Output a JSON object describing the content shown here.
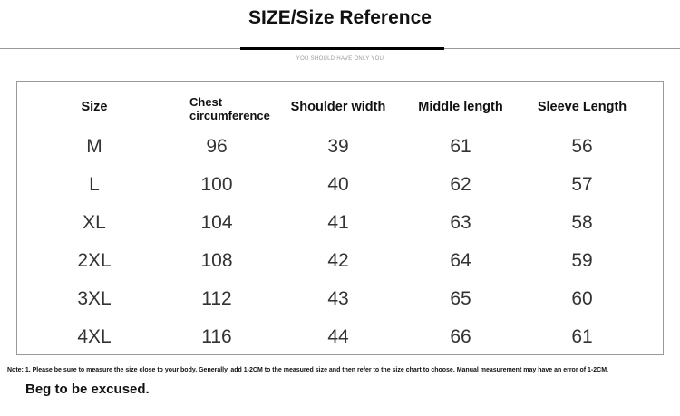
{
  "title": "SIZE/Size Reference",
  "subtitle": "YOU SHOULD HAVE ONLY YOU",
  "table": {
    "headers": [
      "Size",
      "Chest circumference",
      "Shoulder width",
      "Middle length",
      "Sleeve Length"
    ],
    "rows": [
      [
        "M",
        "96",
        "39",
        "61",
        "56"
      ],
      [
        "L",
        "100",
        "40",
        "62",
        "57"
      ],
      [
        "XL",
        "104",
        "41",
        "63",
        "58"
      ],
      [
        "2XL",
        "108",
        "42",
        "64",
        "59"
      ],
      [
        "3XL",
        "112",
        "43",
        "65",
        "60"
      ],
      [
        "4XL",
        "116",
        "44",
        "66",
        "61"
      ]
    ]
  },
  "note": "Note: 1. Please be sure to measure the size close to your body. Generally, add 1-2CM to the measured size and then refer to the size chart to choose. Manual measurement may have an error of 1-2CM.",
  "footer": "Beg to be excused."
}
